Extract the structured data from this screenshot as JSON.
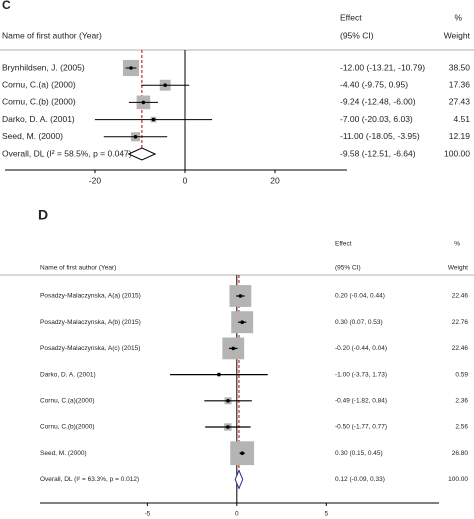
{
  "chart_data": [
    {
      "type": "forest",
      "panel_label": "C",
      "columns": {
        "study": "Name of first author (Year)",
        "effect": "Effect",
        "ci": "(95% CI)",
        "pct": "%",
        "weight": "Weight"
      },
      "categories": [
        "Brynhildsen, J. (2005)",
        "Cornu, C.(a) (2000)",
        "Cornu, C.(b) (2000)",
        "Darko, D. A. (2001)",
        "Seed, M. (2000)"
      ],
      "values": [
        -12.0,
        -4.4,
        -9.24,
        -7.0,
        -11.0
      ],
      "lower": [
        -13.21,
        -9.75,
        -12.48,
        -20.03,
        -18.05
      ],
      "upper": [
        -10.79,
        0.95,
        -6.0,
        6.03,
        -3.95
      ],
      "value_labels": [
        "-12.00 (-13.21, -10.79)",
        "-4.40 (-9.75, 0.95)",
        "-9.24 (-12.48, -6.00)",
        "-7.00 (-20.03, 6.03)",
        "-11.00 (-18.05, -3.95)"
      ],
      "weights": [
        38.5,
        17.36,
        27.43,
        4.51,
        12.19
      ],
      "weight_labels": [
        "38.50",
        "17.36",
        "27.43",
        "4.51",
        "12.19"
      ],
      "overall": {
        "name": "Overall, DL (I² = 58.5%, p = 0.047)",
        "value": -9.58,
        "lower": -12.51,
        "upper": -6.64,
        "value_label": "-9.58 (-12.51, -6.64)",
        "weight": 100,
        "weight_label": "100.00"
      },
      "xlim": [
        -40,
        36
      ],
      "xticks": [
        -20,
        0,
        20
      ],
      "reference_line": 0,
      "box_color": "#b4b4b4",
      "overall_line_color": "#c00000",
      "diamond_color": "#000000"
    },
    {
      "type": "forest",
      "panel_label": "D",
      "columns": {
        "study": "Name of first author (Year)",
        "effect": "Effect",
        "ci": "(95% CI)",
        "pct": "%",
        "weight": "Weight"
      },
      "categories": [
        "Posadzy-Malaczynska, A(a) (2015)",
        "Posadzy-Malaczynska, A(b) (2015)",
        "Posadzy-Malaczynska, A(c) (2015)",
        "Darko, D. A. (2001)",
        "Cornu, C.(a)(2000)",
        "Cornu, C.(b)(2000)",
        "Seed, M. (2000)"
      ],
      "values": [
        0.2,
        0.3,
        -0.2,
        -1.0,
        -0.49,
        -0.5,
        0.3
      ],
      "lower": [
        -0.04,
        0.07,
        -0.44,
        -3.73,
        -1.82,
        -1.77,
        0.15
      ],
      "upper": [
        0.44,
        0.53,
        0.04,
        1.73,
        0.84,
        0.77,
        0.45
      ],
      "value_labels": [
        "0.20 (-0.04, 0.44)",
        "0.30 (0.07, 0.53)",
        "-0.20 (-0.44, 0.04)",
        "-1.00 (-3.73, 1.73)",
        "-0.49 (-1.82, 0.84)",
        "-0.50 (-1.77, 0.77)",
        "0.30 (0.15, 0.45)"
      ],
      "weights": [
        22.46,
        22.76,
        22.46,
        0.59,
        2.36,
        2.56,
        26.8
      ],
      "weight_labels": [
        "22.46",
        "22.76",
        "22.46",
        "0.59",
        "2.36",
        "2.56",
        "26.80"
      ],
      "overall": {
        "name": "Overall, DL (I² = 63.3%, p = 0.012)",
        "value": 0.12,
        "lower": -0.09,
        "upper": 0.33,
        "value_label": "0.12 (-0.09, 0.33)",
        "weight": 100,
        "weight_label": "100.00"
      },
      "xlim": [
        -11,
        11.3
      ],
      "xticks": [
        -5,
        0,
        5
      ],
      "reference_line": 0,
      "box_color": "#b4b4b4",
      "overall_line_color": "#c00000",
      "diamond_color": "#2a2a8a"
    }
  ]
}
